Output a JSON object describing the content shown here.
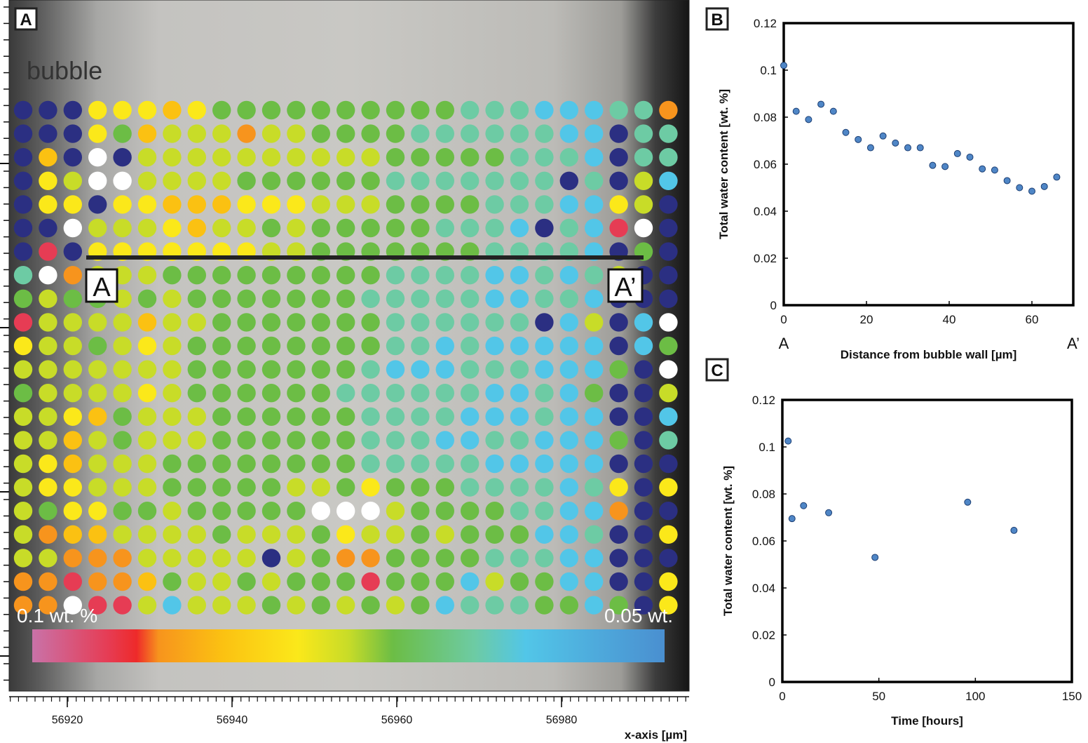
{
  "colors": {
    "scale": [
      "#c972a8",
      "#e63c54",
      "#ee2a2a",
      "#f7941d",
      "#fbc112",
      "#fbe81a",
      "#c8dc28",
      "#6cbd45",
      "#6dcba4",
      "#52c6e8",
      "#4a8fd0"
    ],
    "point_fill": "#4f86c6"
  },
  "map_panel": {
    "panel_label": "A",
    "bubble_label": "bubble",
    "profile_start_label": "A",
    "profile_end_label": "A’",
    "colorbar_left_label": "0.1 wt. %",
    "colorbar_right_label": "0.05 wt.",
    "x_axis_label": "x-axis [µm]",
    "x_ticks": [
      "56920",
      "56940",
      "56960",
      "56980"
    ],
    "grid_color_indices": [
      "000555457777777777888999883",
      "000574666366777788888899088",
      "040106666666666777778889088",
      "056116666777777888888808069",
      "055055444555666777788899560",
      "001666546676777778889089210",
      "020555555566777777788889070",
      "813666777777777888899898600",
      "767767677777778888899889000",
      "266664667777777888888096091",
      "566765677777777889899999097",
      "666666677777778999888999701",
      "766665677777788888899897006",
      "665476667777778888999899009",
      "664676667777778889988999708",
      "654666777777778888899999000",
      "655666777776675777888898505",
      "675577677777111677778899300",
      "634466667666756676777998005",
      "663336666606733777788899000",
      "332334766767772777967799005",
      "331226966676767679888779705"
    ]
  },
  "profile_panel": {
    "panel_label": "B",
    "start_label": "A",
    "end_label": "A’"
  },
  "time_panel": {
    "panel_label": "C"
  },
  "chart_data": [
    {
      "type": "scatter",
      "title": "",
      "xlabel": "Distance from bubble wall [µm]",
      "ylabel": "Total water content [wt. %]",
      "xlim": [
        0,
        70
      ],
      "ylim": [
        0,
        0.12
      ],
      "x_ticks": [
        0,
        20,
        40,
        60
      ],
      "x_tick_labels": [
        "0",
        "20",
        "40",
        "60"
      ],
      "y_ticks": [
        0,
        0.02,
        0.04,
        0.06,
        0.08,
        0.1,
        0.12
      ],
      "y_tick_labels": [
        "0",
        "0.02",
        "0.04",
        "0.06",
        "0.08",
        "0.1",
        "0.12"
      ],
      "x": [
        0,
        3,
        6,
        9,
        12,
        15,
        18,
        21,
        24,
        27,
        30,
        33,
        36,
        39,
        42,
        45,
        48,
        51,
        54,
        57,
        60,
        63,
        66
      ],
      "y": [
        0.102,
        0.0825,
        0.079,
        0.0855,
        0.0825,
        0.0735,
        0.0705,
        0.067,
        0.072,
        0.069,
        0.067,
        0.067,
        0.0595,
        0.059,
        0.0645,
        0.063,
        0.058,
        0.0575,
        0.053,
        0.05,
        0.0485,
        0.0505,
        0.0545
      ]
    },
    {
      "type": "scatter",
      "title": "",
      "xlabel": "Time [hours]",
      "ylabel": "Total water content [wt. %]",
      "xlim": [
        0,
        150
      ],
      "ylim": [
        0,
        0.12
      ],
      "x_ticks": [
        0,
        50,
        100,
        150
      ],
      "x_tick_labels": [
        "0",
        "50",
        "100",
        "150"
      ],
      "y_ticks": [
        0,
        0.02,
        0.04,
        0.06,
        0.08,
        0.1,
        0.12
      ],
      "y_tick_labels": [
        "0",
        "0.02",
        "0.04",
        "0.06",
        "0.08",
        "0.1",
        "0.12"
      ],
      "x": [
        3,
        5,
        11,
        24,
        48,
        96,
        120
      ],
      "y": [
        0.1025,
        0.0695,
        0.075,
        0.072,
        0.053,
        0.0765,
        0.0645
      ]
    }
  ]
}
